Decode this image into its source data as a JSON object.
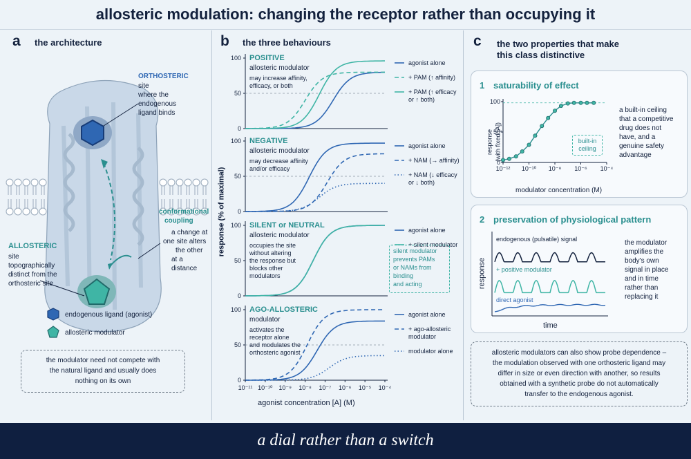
{
  "title": "allosteric modulation: changing the receptor rather than occupying it",
  "footer": "a dial rather than a switch",
  "colors": {
    "navy": "#13213d",
    "blue": "#2f67b3",
    "teal": "#2a8f8f",
    "lightteal": "#3fb5a5",
    "footer_bg": "#0f1f40"
  },
  "panel_a": {
    "letter": "a",
    "title": "the architecture",
    "orthosteric_title": "ORTHOSTERIC",
    "orthosteric_desc": [
      "site",
      "where the",
      "endogenous",
      "ligand binds"
    ],
    "coupling_title": [
      "conformational",
      "coupling"
    ],
    "coupling_desc": [
      "a change at",
      "one site alters",
      "the other",
      "at a distance"
    ],
    "allosteric_title": "ALLOSTERIC",
    "allosteric_desc": [
      "site",
      "topographically",
      "distinct from the",
      "orthosteric site"
    ],
    "legend": [
      "endogenous ligand (agonist)",
      "allosteric modulator"
    ],
    "note": [
      "the modulator need not compete with",
      "the natural ligand and usually does",
      "nothing on its own"
    ]
  },
  "panel_b": {
    "letter": "b",
    "title": "the three behaviours",
    "ylabel": "response (% of maximal)",
    "xlabel": "agonist concentration [A] (M)",
    "yticks": [
      "100",
      "50",
      "0"
    ],
    "xticks": [
      "10⁻¹¹",
      "10⁻¹⁰",
      "10⁻⁹",
      "10⁻⁸",
      "10⁻⁷",
      "10⁻⁶",
      "10⁻⁵",
      "10⁻⁴"
    ],
    "subpanels": [
      {
        "heading": "POSITIVE",
        "sub": "allosteric modulator",
        "desc": [
          "may increase affinity,",
          "efficacy, or both"
        ],
        "legend": [
          [
            "agonist alone"
          ],
          [
            "+ PAM (↑ affinity)"
          ],
          [
            "+ PAM (↑ efficacy",
            "or ↑ both)"
          ]
        ]
      },
      {
        "heading": "NEGATIVE",
        "sub": "allosteric modulator",
        "desc": [
          "may decrease affinity",
          "and/or efficacy"
        ],
        "legend": [
          [
            "agonist alone"
          ],
          [
            "+ NAM (→ affinity)"
          ],
          [
            "+ NAM (↓ efficacy",
            "or ↓ both)"
          ]
        ]
      },
      {
        "heading": "SILENT or NEUTRAL",
        "sub": "allosteric modulator",
        "desc": [
          "occupies the site",
          "without altering",
          "the response but",
          "blocks other",
          "modulators"
        ],
        "legend": [
          [
            "agonist alone"
          ],
          [
            "+ silent modulator"
          ]
        ],
        "note": [
          "silent modulator",
          "prevents PAMs",
          "or NAMs from",
          "binding",
          "and acting"
        ]
      },
      {
        "heading": "AGO-ALLOSTERIC",
        "sub": "modulator",
        "desc": [
          "activates the",
          "receptor alone",
          "and modulates the",
          "orthosteric agonist"
        ],
        "legend": [
          [
            "agonist alone"
          ],
          [
            "+ ago-allosteric",
            "modulator"
          ],
          [
            "modulator alone"
          ]
        ]
      }
    ]
  },
  "panel_c": {
    "letter": "c",
    "title": [
      "the two properties that make",
      "this class distinctive"
    ],
    "card1": {
      "num": "1",
      "title": "saturability of effect",
      "ylabel": [
        "response",
        "(with fixed [A])"
      ],
      "xlabel": "modulator concentration (M)",
      "yticks": [
        "100",
        "50",
        "0"
      ],
      "xticks": [
        "10⁻¹²",
        "10⁻¹⁰",
        "10⁻⁸",
        "10⁻⁶",
        "10⁻⁴"
      ],
      "ceiling": [
        "built-in",
        "ceiling"
      ],
      "desc": [
        "a built-in ceiling",
        "that a competitive",
        "drug does not",
        "have, and a",
        "genuine safety",
        "advantage"
      ]
    },
    "card2": {
      "num": "2",
      "title": "preservation of physiological pattern",
      "ylabel": "response",
      "xlabel": "time",
      "trace_labels": [
        "endogenous (pulsatile) signal",
        "+ positive modulator",
        "direct agonist"
      ],
      "desc": [
        "the modulator",
        "amplifies the",
        "body's own",
        "signal in place",
        "and in time",
        "rather than",
        "replacing it"
      ]
    },
    "note": [
      "allosteric modulators can also show probe dependence –",
      "the modulation observed with one orthosteric ligand may",
      "differ in size or even direction with another, so results",
      "obtained with a synthetic probe do not automatically",
      "transfer to the endogenous agonist."
    ]
  },
  "chart_data": [
    {
      "type": "line",
      "title": "POSITIVE allosteric modulator",
      "ylabel": "response (% of maximal)",
      "xlabel": "agonist concentration [A] (M)",
      "xscale": "log",
      "xlim": [
        1e-11,
        0.0001
      ],
      "ylim": [
        0,
        100
      ],
      "series": [
        {
          "name": "agonist alone",
          "logEC50": -6.6,
          "max": 80,
          "style": "solid",
          "color": "#2f67b3"
        },
        {
          "name": "+ PAM (↑ affinity)",
          "logEC50": -8.0,
          "max": 80,
          "style": "dashed",
          "color": "#3fb5a5"
        },
        {
          "name": "+ PAM (↑ efficacy or ↑ both)",
          "logEC50": -7.3,
          "max": 96,
          "style": "solid",
          "color": "#3fb5a5"
        }
      ]
    },
    {
      "type": "line",
      "title": "NEGATIVE allosteric modulator",
      "ylabel": "response (% of maximal)",
      "xlabel": "agonist concentration [A] (M)",
      "xscale": "log",
      "xlim": [
        1e-11,
        0.0001
      ],
      "ylim": [
        0,
        100
      ],
      "series": [
        {
          "name": "agonist alone",
          "logEC50": -7.8,
          "max": 97,
          "style": "solid",
          "color": "#2f67b3"
        },
        {
          "name": "+ NAM (→ affinity)",
          "logEC50": -6.9,
          "max": 82,
          "style": "dashed",
          "color": "#2f67b3"
        },
        {
          "name": "+ NAM (↓ efficacy or ↓ both)",
          "logEC50": -7.3,
          "max": 40,
          "style": "dotted",
          "color": "#2f67b3"
        }
      ]
    },
    {
      "type": "line",
      "title": "SILENT or NEUTRAL allosteric modulator",
      "ylabel": "response (% of maximal)",
      "xlabel": "agonist concentration [A] (M)",
      "xscale": "log",
      "xlim": [
        1e-11,
        0.0001
      ],
      "ylim": [
        0,
        100
      ],
      "series": [
        {
          "name": "agonist alone",
          "logEC50": -7.6,
          "max": 100,
          "style": "solid",
          "color": "#2f67b3"
        },
        {
          "name": "+ silent modulator",
          "logEC50": -7.6,
          "max": 100,
          "style": "solid",
          "color": "#3fb5a5"
        }
      ]
    },
    {
      "type": "line",
      "title": "AGO-ALLOSTERIC modulator",
      "ylabel": "response (% of maximal)",
      "xlabel": "agonist concentration [A] (M)",
      "xscale": "log",
      "xlim": [
        1e-11,
        0.0001
      ],
      "ylim": [
        0,
        100
      ],
      "series": [
        {
          "name": "agonist alone",
          "logEC50": -7.4,
          "max": 84,
          "style": "solid",
          "color": "#2f67b3"
        },
        {
          "name": "+ ago-allosteric modulator",
          "logEC50": -7.9,
          "max": 100,
          "style": "dashed",
          "color": "#2f67b3"
        },
        {
          "name": "modulator alone",
          "logEC50": -6.8,
          "max": 35,
          "style": "dotted",
          "color": "#2f67b3"
        }
      ]
    },
    {
      "type": "scatter",
      "title": "saturability of effect",
      "ylabel": "response (with fixed [A])",
      "xlabel": "modulator concentration (M)",
      "xscale": "log",
      "xlim": [
        1e-12,
        0.0001
      ],
      "ylim": [
        0,
        100
      ],
      "x": [
        1e-12,
        3e-12,
        1e-11,
        3e-11,
        1e-10,
        3e-10,
        1e-09,
        3e-09,
        1e-08,
        3e-08,
        1e-07,
        3e-07,
        1e-06,
        3e-06,
        1e-05
      ],
      "y": [
        4,
        6,
        10,
        18,
        29,
        44,
        60,
        73,
        85,
        93,
        97,
        98,
        98,
        98,
        98
      ]
    }
  ]
}
